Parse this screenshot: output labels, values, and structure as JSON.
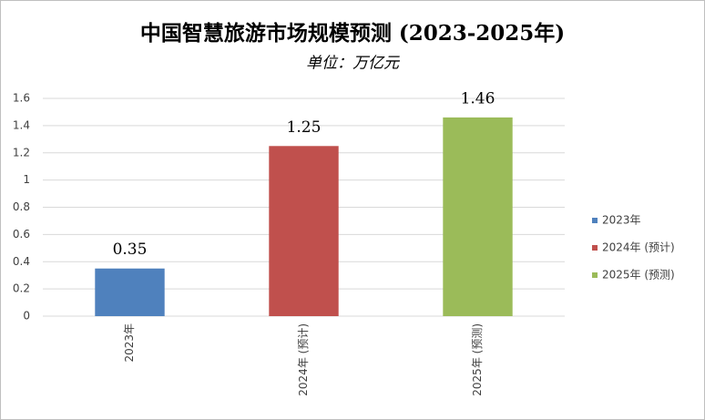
{
  "chart_data": {
    "type": "bar",
    "title": "中国智慧旅游市场规模预测 (2023-2025年)",
    "subtitle": "单位：万亿元",
    "categories": [
      "2023年",
      "2024年 (预计)",
      "2025年 (预测)"
    ],
    "values": [
      0.35,
      1.25,
      1.46
    ],
    "colors": [
      "#4f81bd",
      "#c0504d",
      "#9bbb59"
    ],
    "ylim": [
      0,
      1.6
    ],
    "yticks": [
      0,
      0.2,
      0.4,
      0.6,
      0.8,
      1,
      1.2,
      1.4,
      1.6
    ],
    "grid": true,
    "legend": "right"
  }
}
